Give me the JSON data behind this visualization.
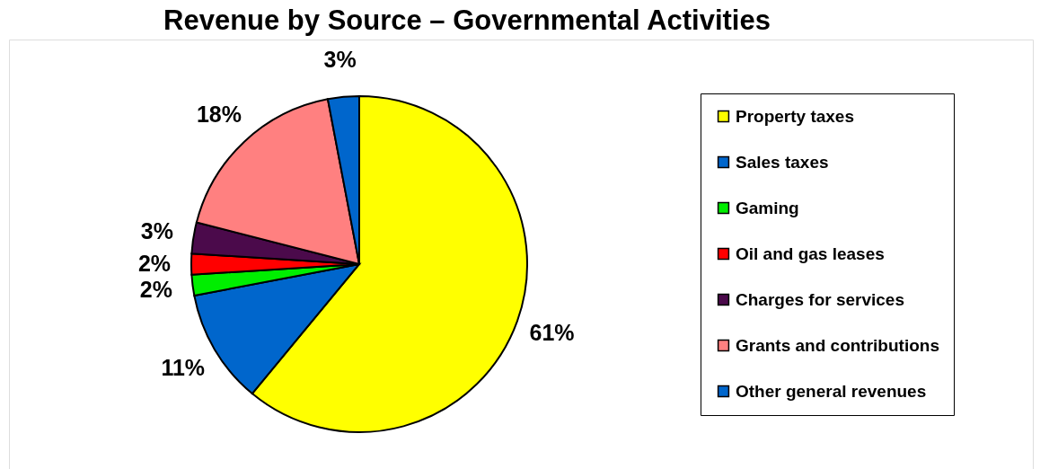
{
  "chart_data": {
    "type": "pie",
    "title": "Revenue by Source – Governmental Activities",
    "categories": [
      "Property taxes",
      "Sales taxes",
      "Gaming",
      "Oil and gas leases",
      "Charges for services",
      "Grants and contributions",
      "Other general revenues"
    ],
    "values": [
      61,
      11,
      2,
      2,
      3,
      18,
      3
    ],
    "colors": [
      "#ffff00",
      "#0066cc",
      "#00ee00",
      "#ff0000",
      "#4b0a4b",
      "#ff8080",
      "#0066cc"
    ],
    "value_labels": [
      "61%",
      "11%",
      "2%",
      "2%",
      "3%",
      "18%",
      "3%"
    ],
    "legend": "right"
  }
}
